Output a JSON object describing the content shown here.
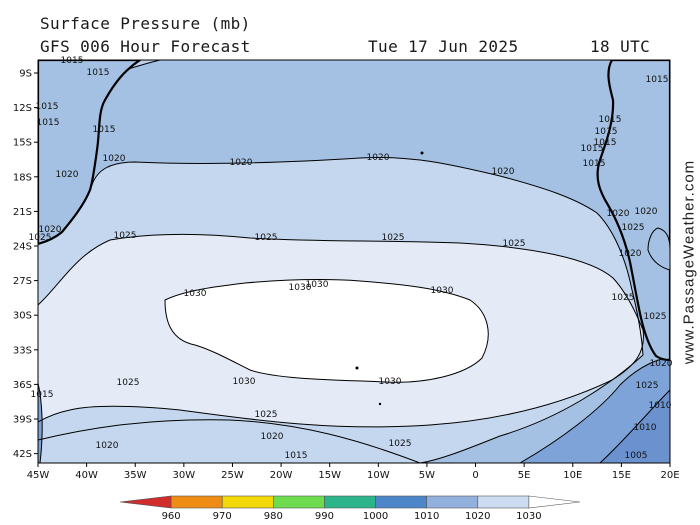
{
  "header": {
    "title": "Surface Pressure (mb)",
    "model": "GFS 006 Hour Forecast",
    "date": "Tue 17 Jun 2025",
    "time": "18 UTC"
  },
  "watermark": "www.PassageWeather.com",
  "map": {
    "lon_ticks": [
      "45W",
      "40W",
      "35W",
      "30W",
      "25W",
      "20W",
      "15W",
      "10W",
      "5W",
      "0",
      "5E",
      "10E",
      "15E",
      "20E"
    ],
    "lat_ticks": [
      "9S",
      "12S",
      "15S",
      "18S",
      "21S",
      "24S",
      "27S",
      "30S",
      "33S",
      "36S",
      "39S",
      "42S"
    ],
    "isobar_labels": {
      "i1010": [
        "1010",
        "1010"
      ],
      "i1015": [
        "1015",
        "1015",
        "1015",
        "1015",
        "1015",
        "1015",
        "1015",
        "1015",
        "1015",
        "1015",
        "1015",
        "1015",
        "1015"
      ],
      "i1020": [
        "1020",
        "1020",
        "1020",
        "1020",
        "1020",
        "1020",
        "1020",
        "1020",
        "1020",
        "1020",
        "1020",
        "1020"
      ],
      "i1025": [
        "1025",
        "1025",
        "1025",
        "1025",
        "1025",
        "1025",
        "1025",
        "1025",
        "1025",
        "1025",
        "1025",
        "1025"
      ],
      "i1030": [
        "1030",
        "1030",
        "1030",
        "1030",
        "1030",
        "1030"
      ],
      "i1005": [
        "1005"
      ]
    },
    "colors": {
      "p1005_1010": "#6b92cf",
      "p1010_1015": "#7ea3d8",
      "p1015_1020": "#a4c0e2",
      "p1020_1025": "#c5d7ee",
      "p1025_1030": "#e4ebf6",
      "p_above_1030": "#ffffff",
      "land": "#a4c0e2",
      "coast": "#000000"
    }
  },
  "legend": {
    "labels": [
      "960",
      "970",
      "980",
      "990",
      "1000",
      "1010",
      "1020",
      "1030"
    ],
    "colors": [
      "#d12d2d",
      "#ef8c14",
      "#f3d808",
      "#6edc4e",
      "#2db48a",
      "#4d86c9",
      "#92b0dc",
      "#cddcf0",
      "#ffffff"
    ]
  }
}
